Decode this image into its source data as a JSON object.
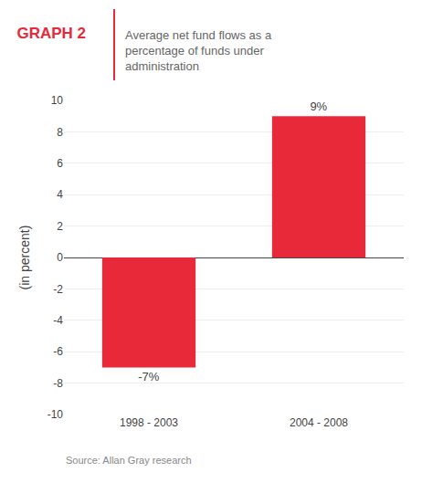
{
  "chart_data": {
    "type": "bar",
    "title": "GRAPH 2",
    "subtitle": [
      "Average net fund flows as a",
      "percentage of funds under",
      "administration"
    ],
    "categories": [
      "1998 - 2003",
      "2004 - 2008"
    ],
    "values": [
      -7,
      9
    ],
    "data_labels": true,
    "value_labels": [
      "-7%",
      "9%"
    ],
    "color": "#e8293a",
    "y_label": "(in percent)",
    "ylim": [
      -10,
      10
    ],
    "yticks": [
      -10,
      -8,
      -6,
      -4,
      -2,
      0,
      2,
      4,
      6,
      8,
      10
    ],
    "grid": true,
    "annotations": [
      "Source: Allan Gray research"
    ]
  }
}
